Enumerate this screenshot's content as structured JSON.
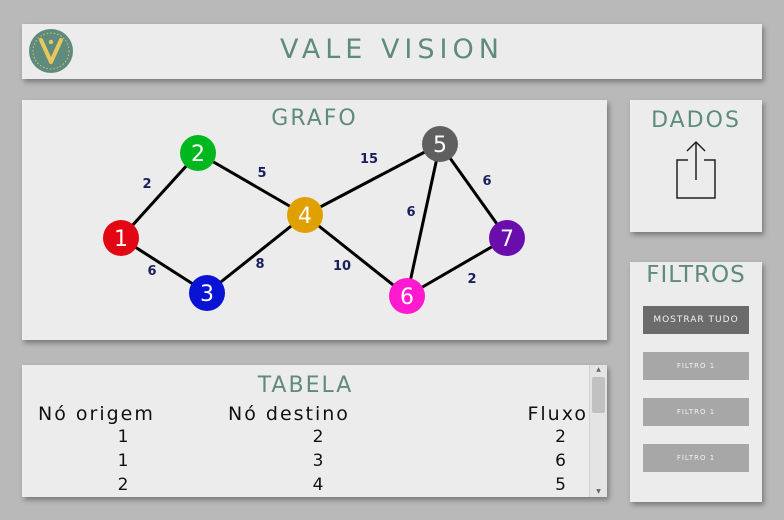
{
  "header": {
    "title": "VALE VISION"
  },
  "graph": {
    "title": "GRAFO",
    "nodes": [
      {
        "id": "1",
        "label": "1",
        "color": "#e30613"
      },
      {
        "id": "2",
        "label": "2",
        "color": "#00b81e"
      },
      {
        "id": "3",
        "label": "3",
        "color": "#0a13d3"
      },
      {
        "id": "4",
        "label": "4",
        "color": "#e0a000"
      },
      {
        "id": "5",
        "label": "5",
        "color": "#5f5f5f"
      },
      {
        "id": "6",
        "label": "6",
        "color": "#ff1ad0"
      },
      {
        "id": "7",
        "label": "7",
        "color": "#6a0dad"
      }
    ],
    "edges": [
      {
        "from": "1",
        "to": "2",
        "weight": "2"
      },
      {
        "from": "1",
        "to": "3",
        "weight": "6"
      },
      {
        "from": "2",
        "to": "4",
        "weight": "5"
      },
      {
        "from": "3",
        "to": "4",
        "weight": "8"
      },
      {
        "from": "4",
        "to": "5",
        "weight": "15"
      },
      {
        "from": "4",
        "to": "6",
        "weight": "10"
      },
      {
        "from": "5",
        "to": "6",
        "weight": "6"
      },
      {
        "from": "5",
        "to": "7",
        "weight": "6"
      },
      {
        "from": "6",
        "to": "7",
        "weight": "2"
      }
    ]
  },
  "dados": {
    "title": "DADOS",
    "icon": "share-icon"
  },
  "filtros": {
    "title": "FILTROS",
    "buttons": [
      {
        "label": "MOSTRAR TUDO",
        "active": true
      },
      {
        "label": "FILTRO 1"
      },
      {
        "label": "FILTRO 1"
      },
      {
        "label": "FILTRO 1"
      }
    ]
  },
  "table": {
    "title": "TABELA",
    "columns": [
      "Nó origem",
      "Nó destino",
      "Fluxo"
    ],
    "rows": [
      [
        "1",
        "2",
        "2"
      ],
      [
        "1",
        "3",
        "6"
      ],
      [
        "2",
        "4",
        "5"
      ]
    ]
  },
  "colors": {
    "accent": "#5e8b7e",
    "panel": "#ececec",
    "background": "#b9b9b9"
  }
}
